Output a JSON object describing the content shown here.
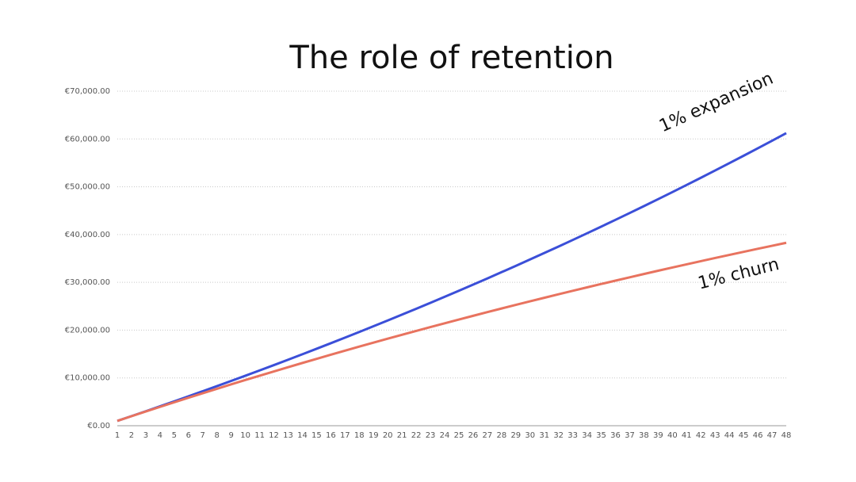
{
  "chart_data": {
    "type": "line",
    "title": "The role of retention",
    "x": [
      1,
      2,
      3,
      4,
      5,
      6,
      7,
      8,
      9,
      10,
      11,
      12,
      13,
      14,
      15,
      16,
      17,
      18,
      19,
      20,
      21,
      22,
      23,
      24,
      25,
      26,
      27,
      28,
      29,
      30,
      31,
      32,
      33,
      34,
      35,
      36,
      37,
      38,
      39,
      40,
      41,
      42,
      43,
      44,
      45,
      46,
      47,
      48
    ],
    "xlim": [
      1,
      48
    ],
    "series": [
      {
        "name": "1% expansion",
        "color": "#3b4fd8",
        "values": [
          1000,
          2010,
          3030,
          4060,
          5101,
          6152,
          7214,
          8286,
          9369,
          10462,
          11567,
          12683,
          13809,
          14947,
          16097,
          17258,
          18430,
          19615,
          20811,
          22019,
          23239,
          24472,
          25716,
          26973,
          28243,
          29526,
          30821,
          32129,
          33450,
          34785,
          36133,
          37494,
          38869,
          40258,
          41660,
          43077,
          44508,
          45953,
          47412,
          48886,
          50375,
          51879,
          53398,
          54932,
          56481,
          58046,
          59626,
          61223
        ]
      },
      {
        "name": "1% churn",
        "color": "#e8735f",
        "values": [
          1000,
          1990,
          2970,
          3940,
          4901,
          5852,
          6793,
          7726,
          8648,
          9562,
          10466,
          11362,
          12248,
          13125,
          13994,
          14854,
          15706,
          16549,
          17383,
          18209,
          19027,
          19837,
          20639,
          21432,
          22218,
          22996,
          23766,
          24528,
          25283,
          26030,
          26770,
          27502,
          28227,
          28945,
          29655,
          30359,
          31055,
          31745,
          32427,
          33103,
          33772,
          34434,
          35090,
          35739,
          36382,
          37018,
          37648,
          38271
        ]
      }
    ],
    "ylim": [
      0,
      70000
    ],
    "yticks": [
      {
        "value": 0,
        "label": "€0.00"
      },
      {
        "value": 10000,
        "label": "€10,000.00"
      },
      {
        "value": 20000,
        "label": "€20,000.00"
      },
      {
        "value": 30000,
        "label": "€30,000.00"
      },
      {
        "value": 40000,
        "label": "€40,000.00"
      },
      {
        "value": 50000,
        "label": "€50,000.00"
      },
      {
        "value": 60000,
        "label": "€60,000.00"
      },
      {
        "value": 70000,
        "label": "€70,000.00"
      }
    ],
    "grid": true
  }
}
